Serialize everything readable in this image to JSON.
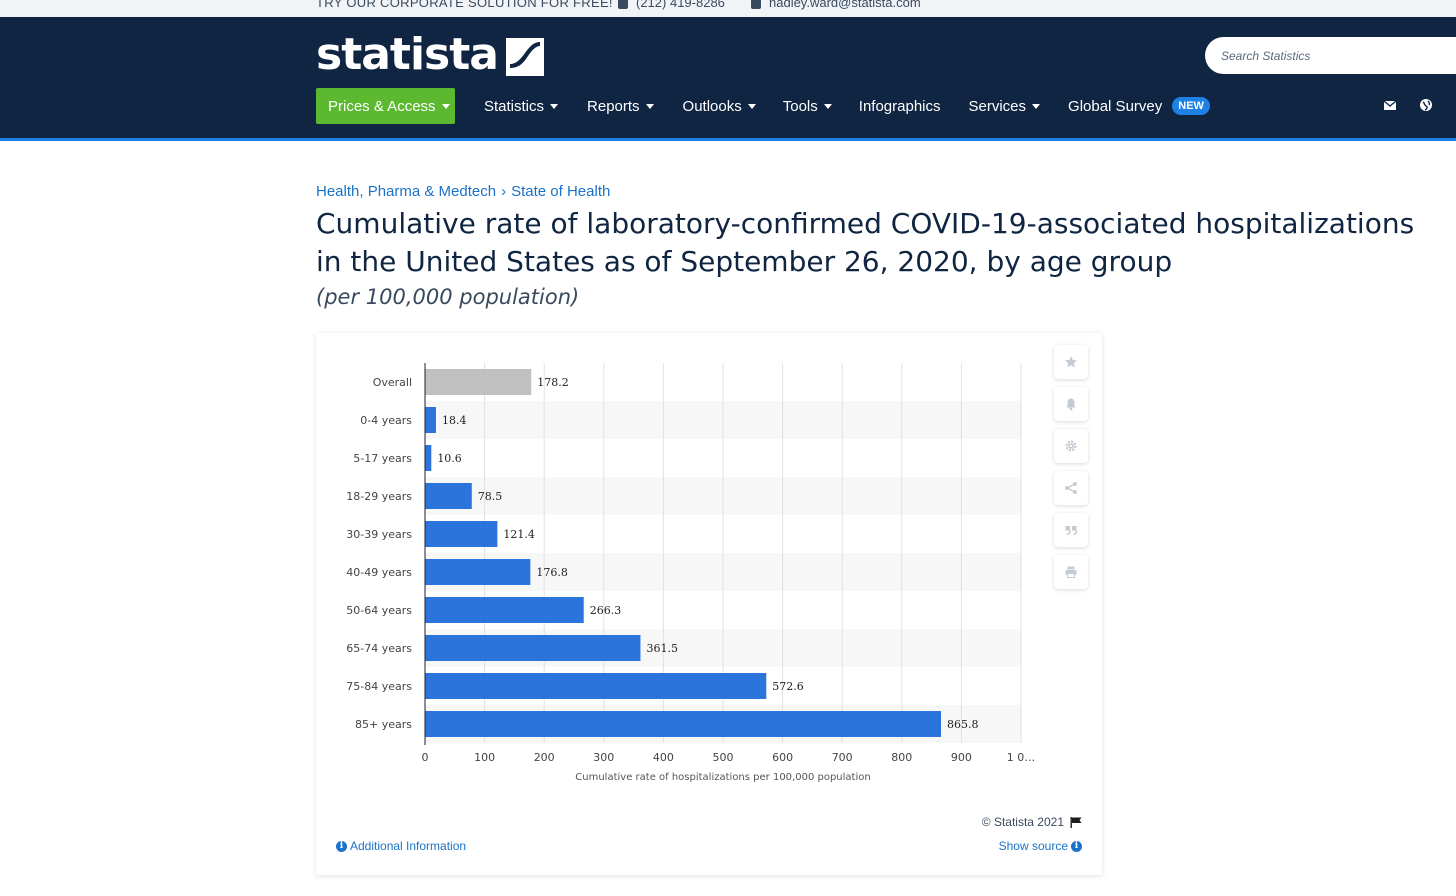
{
  "topbar": {
    "promo": "TRY OUR CORPORATE SOLUTION FOR FREE!",
    "phone": "(212) 419-8286",
    "email": "hadley.ward@statista.com",
    "phone_icon": "phone-icon",
    "email_icon": "envelope-icon"
  },
  "header": {
    "logo": "statista",
    "search_placeholder": "Search Statistics",
    "nav": [
      {
        "label": "Prices & Access",
        "caret": true
      },
      {
        "label": "Statistics",
        "caret": true
      },
      {
        "label": "Reports",
        "caret": true
      },
      {
        "label": "Outlooks",
        "caret": true
      },
      {
        "label": "Tools",
        "caret": true
      },
      {
        "label": "Infographics",
        "caret": false
      },
      {
        "label": "Services",
        "caret": true
      },
      {
        "label": "Global Survey",
        "caret": false,
        "badge": "NEW"
      }
    ],
    "right_icons": [
      "envelope-icon",
      "globe-icon"
    ],
    "colors": {
      "bg": "#0f2542",
      "accent": "#1e82e5",
      "prices": "#5cb82f"
    }
  },
  "breadcrumb": {
    "items": [
      "Health, Pharma & Medtech",
      "State of Health"
    ],
    "separator": "›"
  },
  "title": "Cumulative rate of laboratory-confirmed COVID-19-associated hospitalizations in the United States as of September 26, 2020, by age group",
  "subtitle": "(per 100,000 population)",
  "chart_data": {
    "type": "bar",
    "orientation": "horizontal",
    "categories": [
      "Overall",
      "0-4 years",
      "5-17 years",
      "18-29 years",
      "30-39 years",
      "40-49 years",
      "50-64 years",
      "65-74 years",
      "75-84 years",
      "85+ years"
    ],
    "values": [
      178.2,
      18.4,
      10.6,
      78.5,
      121.4,
      176.8,
      266.3,
      361.5,
      572.6,
      865.8
    ],
    "value_labels": [
      "178.2",
      "18.4",
      "10.6",
      "78.5",
      "121.4",
      "176.8",
      "266.3",
      "361.5",
      "572.6",
      "865.8"
    ],
    "bar_colors": [
      "#c0c0c0",
      "#2a74db",
      "#2a74db",
      "#2a74db",
      "#2a74db",
      "#2a74db",
      "#2a74db",
      "#2a74db",
      "#2a74db",
      "#2a74db"
    ],
    "xlabel": "Cumulative rate of hospitalizations per 100,000 population",
    "ylabel": "",
    "xlim": [
      0,
      1000
    ],
    "xticks": [
      0,
      100,
      200,
      300,
      400,
      500,
      600,
      700,
      800,
      900,
      1000
    ],
    "xtick_labels": [
      "0",
      "100",
      "200",
      "300",
      "400",
      "500",
      "600",
      "700",
      "800",
      "900",
      "1 0…"
    ],
    "grid": "vertical",
    "alternating_row_bands": true
  },
  "tools": [
    "star-icon",
    "bell-icon",
    "gear-icon",
    "share-icon",
    "quote-icon",
    "print-icon"
  ],
  "footer": {
    "copyright": "© Statista 2021",
    "flag_icon": "flag-icon",
    "additional_info": "Additional Information",
    "show_source": "Show source"
  }
}
